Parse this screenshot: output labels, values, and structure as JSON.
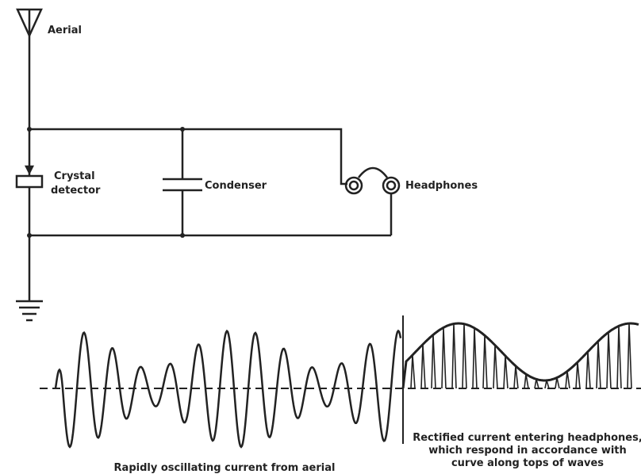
{
  "labels": {
    "aerial": "Aerial",
    "crystal": "Crystal",
    "detector": "detector",
    "condenser": "Condenser",
    "headphones": "Headphones"
  },
  "captions": {
    "oscillating": "Rapidly oscillating current from aerial",
    "rectified": [
      "Rectified current entering headphones,",
      "which respond in accordance with",
      "curve along tops of waves"
    ]
  }
}
